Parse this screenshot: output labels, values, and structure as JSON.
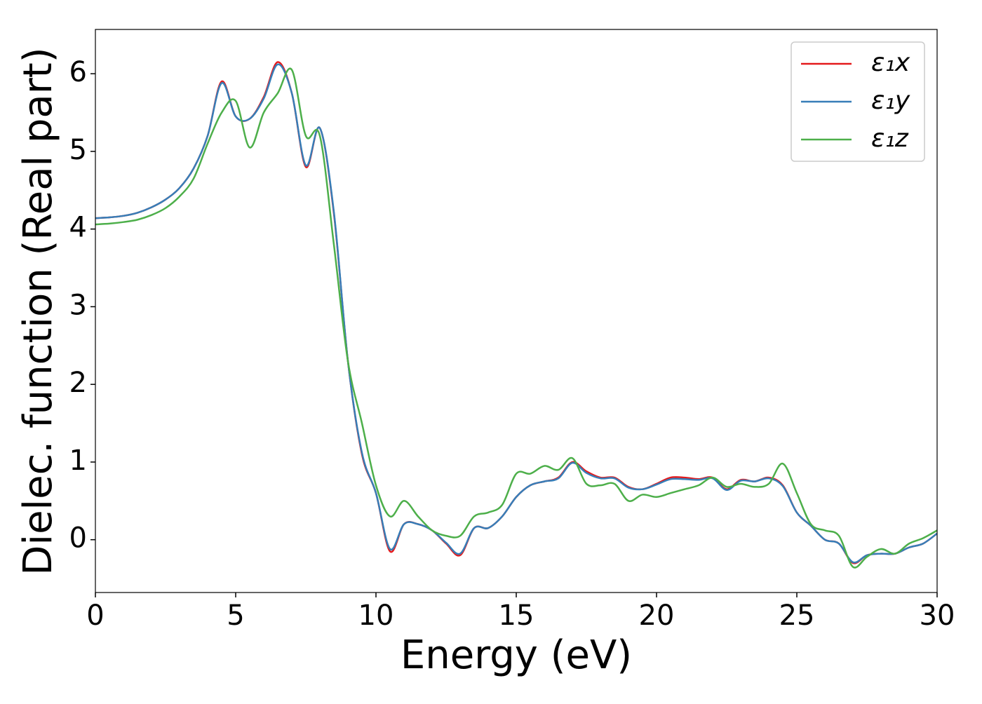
{
  "chart_data": {
    "type": "line",
    "xlabel": "Energy (eV)",
    "ylabel": "Dielec. function (Real part)",
    "x": [
      0,
      0.5,
      1,
      1.5,
      2,
      2.5,
      3,
      3.5,
      4,
      4.5,
      5,
      5.5,
      6,
      6.5,
      7,
      7.5,
      8,
      8.5,
      9,
      9.5,
      10,
      10.5,
      11,
      11.5,
      12,
      12.5,
      13,
      13.5,
      14,
      14.5,
      15,
      15.5,
      16,
      16.5,
      17,
      17.5,
      18,
      18.5,
      19,
      19.5,
      20,
      20.5,
      21,
      21.5,
      22,
      22.5,
      23,
      23.5,
      24,
      24.5,
      25,
      25.5,
      26,
      26.5,
      27,
      27.5,
      28,
      28.5,
      29,
      29.5,
      30
    ],
    "series": [
      {
        "name": "ε₁x",
        "color": "#e41a1c",
        "values": [
          4.14,
          4.15,
          4.17,
          4.21,
          4.28,
          4.38,
          4.53,
          4.78,
          5.2,
          5.9,
          5.45,
          5.42,
          5.7,
          6.15,
          5.75,
          4.8,
          5.3,
          4.2,
          2.3,
          1.1,
          0.6,
          -0.15,
          0.2,
          0.2,
          0.12,
          -0.05,
          -0.2,
          0.15,
          0.15,
          0.3,
          0.55,
          0.7,
          0.75,
          0.8,
          1.0,
          0.88,
          0.8,
          0.8,
          0.68,
          0.65,
          0.72,
          0.8,
          0.8,
          0.78,
          0.8,
          0.65,
          0.77,
          0.75,
          0.8,
          0.7,
          0.35,
          0.18,
          0.0,
          -0.05,
          -0.3,
          -0.2,
          -0.18,
          -0.18,
          -0.1,
          -0.05,
          0.08
        ]
      },
      {
        "name": "ε₁y",
        "color": "#377eb8",
        "values": [
          4.14,
          4.15,
          4.17,
          4.21,
          4.28,
          4.38,
          4.53,
          4.78,
          5.2,
          5.88,
          5.45,
          5.42,
          5.68,
          6.12,
          5.75,
          4.82,
          5.3,
          4.22,
          2.3,
          1.12,
          0.6,
          -0.12,
          0.2,
          0.2,
          0.12,
          -0.04,
          -0.18,
          0.15,
          0.15,
          0.3,
          0.55,
          0.7,
          0.75,
          0.79,
          0.99,
          0.86,
          0.79,
          0.79,
          0.67,
          0.65,
          0.71,
          0.78,
          0.78,
          0.77,
          0.79,
          0.64,
          0.76,
          0.75,
          0.79,
          0.69,
          0.35,
          0.18,
          0.0,
          -0.05,
          -0.29,
          -0.2,
          -0.18,
          -0.18,
          -0.1,
          -0.05,
          0.08
        ]
      },
      {
        "name": "ε₁z",
        "color": "#4daf4a",
        "values": [
          4.06,
          4.07,
          4.09,
          4.12,
          4.18,
          4.27,
          4.42,
          4.65,
          5.1,
          5.5,
          5.65,
          5.05,
          5.5,
          5.75,
          6.05,
          5.2,
          5.2,
          3.8,
          2.3,
          1.5,
          0.7,
          0.3,
          0.5,
          0.3,
          0.12,
          0.05,
          0.05,
          0.3,
          0.35,
          0.45,
          0.85,
          0.85,
          0.95,
          0.9,
          1.05,
          0.72,
          0.7,
          0.72,
          0.5,
          0.58,
          0.55,
          0.6,
          0.65,
          0.7,
          0.8,
          0.68,
          0.72,
          0.68,
          0.72,
          0.98,
          0.6,
          0.2,
          0.12,
          0.05,
          -0.35,
          -0.22,
          -0.12,
          -0.18,
          -0.05,
          0.02,
          0.12
        ]
      }
    ],
    "xlim": [
      0,
      30
    ],
    "xticks": [
      0,
      5,
      10,
      15,
      20,
      25,
      30
    ],
    "ylim": [
      -0.68,
      6.57
    ],
    "yticks": [
      0,
      1,
      2,
      3,
      4,
      5,
      6
    ],
    "legend": "upper right"
  }
}
